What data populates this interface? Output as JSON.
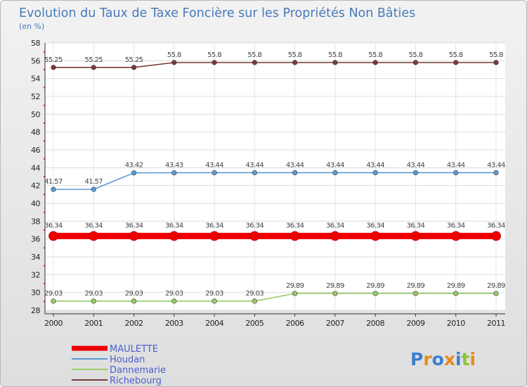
{
  "chart_data": {
    "type": "line",
    "title": "Evolution du Taux de Taxe Foncière sur les Propriétés Non Bâties",
    "subtitle": "(en %)",
    "xlabel": "",
    "ylabel": "",
    "ylim": [
      28,
      58
    ],
    "yticks": [
      "28",
      "30",
      "32",
      "34",
      "36",
      "38",
      "40",
      "42",
      "44",
      "46",
      "48",
      "50",
      "52",
      "54",
      "56",
      "58"
    ],
    "x": [
      "2000",
      "2001",
      "2002",
      "2003",
      "2004",
      "2005",
      "2006",
      "2007",
      "2008",
      "2009",
      "2010",
      "2011"
    ],
    "grid": true,
    "legend_position": "bottom-left",
    "series": [
      {
        "name": "MAULETTE",
        "color": "#ee0000",
        "values": [
          36.34,
          36.34,
          36.34,
          36.34,
          36.34,
          36.34,
          36.34,
          36.34,
          36.34,
          36.34,
          36.34,
          36.34
        ],
        "labels": [
          "36.34",
          "36.34",
          "36.34",
          "36.34",
          "36.34",
          "36.34",
          "36.34",
          "36.34",
          "36.34",
          "36.34",
          "36.34",
          "36.34"
        ]
      },
      {
        "name": "Houdan",
        "color": "#5b9bd5",
        "values": [
          41.57,
          41.57,
          43.42,
          43.43,
          43.44,
          43.44,
          43.44,
          43.44,
          43.44,
          43.44,
          43.44,
          43.44
        ],
        "labels": [
          "41.57",
          "41.57",
          "43.42",
          "43.43",
          "43.44",
          "43.44",
          "43.44",
          "43.44",
          "43.44",
          "43.44",
          "43.44",
          "43.44"
        ]
      },
      {
        "name": "Dannemarie",
        "color": "#99cc66",
        "values": [
          29.03,
          29.03,
          29.03,
          29.03,
          29.03,
          29.03,
          29.89,
          29.89,
          29.89,
          29.89,
          29.89,
          29.89
        ],
        "labels": [
          "29.03",
          "29.03",
          "29.03",
          "29.03",
          "29.03",
          "29.03",
          "29.89",
          "29.89",
          "29.89",
          "29.89",
          "29.89",
          "29.89"
        ]
      },
      {
        "name": "Richebourg",
        "color": "#7a3b3b",
        "values": [
          55.25,
          55.25,
          55.25,
          55.8,
          55.8,
          55.8,
          55.8,
          55.8,
          55.8,
          55.8,
          55.8,
          55.8
        ],
        "labels": [
          "55.25",
          "55.25",
          "55.25",
          "55.8",
          "55.8",
          "55.8",
          "55.8",
          "55.8",
          "55.8",
          "55.8",
          "55.8",
          "55.8"
        ]
      }
    ]
  },
  "logo": {
    "text": "Proxiti",
    "letters": [
      "P",
      "r",
      "o",
      "x",
      "i",
      "t",
      "i"
    ]
  }
}
